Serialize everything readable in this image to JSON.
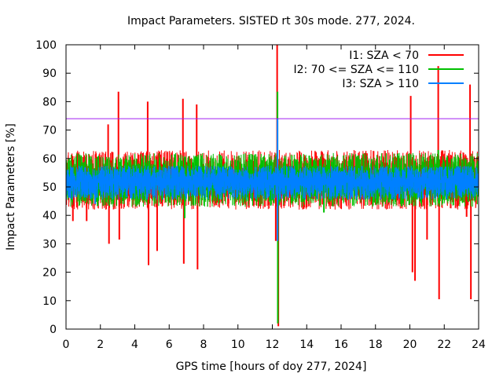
{
  "chart_data": {
    "type": "line",
    "title": "Impact Parameters. SISTED rt 30s mode. 277, 2024.",
    "xlabel": "GPS time [hours of doy 277, 2024]",
    "ylabel": "Impact Parameters [%]",
    "xlim": [
      0,
      24
    ],
    "ylim": [
      0,
      100
    ],
    "xticks": [
      0,
      2,
      4,
      6,
      8,
      10,
      12,
      14,
      16,
      18,
      20,
      22,
      24
    ],
    "yticks": [
      0,
      10,
      20,
      30,
      40,
      50,
      60,
      70,
      80,
      90,
      100
    ],
    "legend_position": "top-right",
    "reference_line": {
      "y": 74,
      "color": "#a020f0"
    },
    "baseline": {
      "mean": 52,
      "band_low": 45,
      "band_high": 59
    },
    "series": [
      {
        "name": "I1: SZA < 70",
        "color": "#ff0000",
        "spikes": [
          {
            "x": 0.4,
            "y": 38
          },
          {
            "x": 1.2,
            "y": 38
          },
          {
            "x": 2.45,
            "y": 72
          },
          {
            "x": 2.5,
            "y": 30
          },
          {
            "x": 3.05,
            "y": 83.5
          },
          {
            "x": 3.1,
            "y": 31.5
          },
          {
            "x": 4.75,
            "y": 80
          },
          {
            "x": 4.8,
            "y": 22.5
          },
          {
            "x": 5.3,
            "y": 27.5
          },
          {
            "x": 6.8,
            "y": 81
          },
          {
            "x": 6.85,
            "y": 23
          },
          {
            "x": 7.6,
            "y": 79
          },
          {
            "x": 7.65,
            "y": 21
          },
          {
            "x": 12.2,
            "y": 31
          },
          {
            "x": 12.28,
            "y": 100
          },
          {
            "x": 12.35,
            "y": 1
          },
          {
            "x": 20.05,
            "y": 82
          },
          {
            "x": 20.15,
            "y": 20
          },
          {
            "x": 20.3,
            "y": 17
          },
          {
            "x": 21.0,
            "y": 31.5
          },
          {
            "x": 21.65,
            "y": 92.5
          },
          {
            "x": 21.7,
            "y": 10.5
          },
          {
            "x": 23.3,
            "y": 39.5
          },
          {
            "x": 23.5,
            "y": 86
          },
          {
            "x": 23.55,
            "y": 10.5
          }
        ]
      },
      {
        "name": "I2: 70 <= SZA <= 110",
        "color": "#00c000",
        "spikes": [
          {
            "x": 6.9,
            "y": 39
          },
          {
            "x": 12.3,
            "y": 83.5
          },
          {
            "x": 12.32,
            "y": 2
          },
          {
            "x": 13.2,
            "y": 45
          },
          {
            "x": 15.0,
            "y": 41
          },
          {
            "x": 21.65,
            "y": 63
          }
        ]
      },
      {
        "name": "I3: SZA > 110",
        "color": "#0080ff",
        "spikes": [
          {
            "x": 1.7,
            "y": 44
          },
          {
            "x": 12.3,
            "y": 74
          },
          {
            "x": 12.3,
            "y": 31
          }
        ]
      }
    ]
  }
}
